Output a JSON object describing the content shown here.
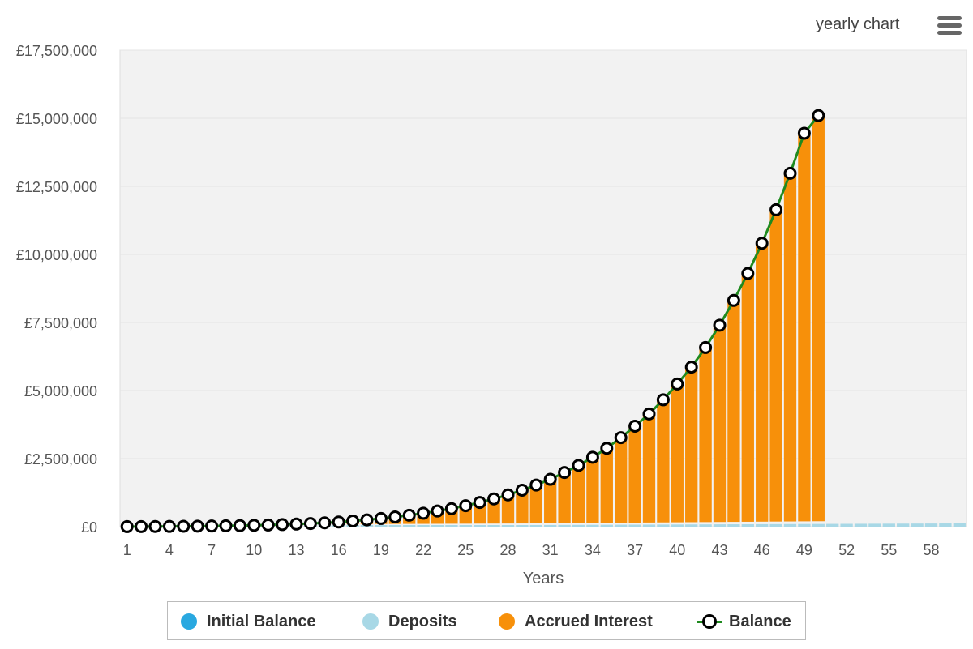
{
  "header": {
    "title": "yearly chart",
    "menu_icon": "hamburger-menu-icon"
  },
  "chart_data": {
    "type": "bar",
    "stacked": true,
    "xlabel": "Years",
    "ylabel": "",
    "ylim": [
      0,
      17500000
    ],
    "y_ticks": [
      0,
      2500000,
      5000000,
      7500000,
      10000000,
      12500000,
      15000000,
      17500000
    ],
    "y_tick_labels": [
      "£0",
      "£2,500,000",
      "£5,000,000",
      "£7,500,000",
      "£10,000,000",
      "£12,500,000",
      "£15,000,000",
      "£17,500,000"
    ],
    "x_tick_labels": [
      "1",
      "4",
      "7",
      "10",
      "13",
      "16",
      "19",
      "22",
      "25",
      "28",
      "31",
      "34",
      "37",
      "40",
      "43",
      "46",
      "49",
      "52",
      "55",
      "58"
    ],
    "categories": [
      1,
      2,
      3,
      4,
      5,
      6,
      7,
      8,
      9,
      10,
      11,
      12,
      13,
      14,
      15,
      16,
      17,
      18,
      19,
      20,
      21,
      22,
      23,
      24,
      25,
      26,
      27,
      28,
      29,
      30,
      31,
      32,
      33,
      34,
      35,
      36,
      37,
      38,
      39,
      40,
      41,
      42,
      43,
      44,
      45,
      46,
      47,
      48,
      49,
      50,
      51,
      52,
      53,
      54,
      55,
      56,
      57,
      58,
      59,
      60
    ],
    "grid": true,
    "legend_position": "bottom",
    "colors": {
      "initial_balance": "#29a8e0",
      "deposits": "#a8d8e6",
      "accrued_interest": "#f7900a",
      "balance_line": "#1f8a1f",
      "plot_background": "#f2f2f2"
    },
    "series": [
      {
        "name": "Initial Balance",
        "type": "bar",
        "values": [
          0,
          0,
          0,
          0,
          0,
          0,
          0,
          0,
          0,
          0,
          0,
          0,
          0,
          0,
          0,
          0,
          0,
          0,
          0,
          0,
          0,
          0,
          0,
          0,
          0,
          0,
          0,
          0,
          0,
          0,
          0,
          0,
          0,
          0,
          0,
          0,
          0,
          0,
          0,
          0,
          0,
          0,
          0,
          0,
          0,
          0,
          0,
          0,
          0,
          0,
          0,
          0,
          0,
          0,
          0,
          0,
          0,
          0,
          0,
          0
        ]
      },
      {
        "name": "Deposits",
        "type": "bar",
        "values": [
          2000,
          4000,
          6000,
          8000,
          10000,
          12000,
          14000,
          16000,
          18000,
          20000,
          22000,
          24000,
          26000,
          28000,
          30000,
          32000,
          34000,
          36000,
          38000,
          40000,
          42000,
          44000,
          46000,
          48000,
          50000,
          52000,
          54000,
          56000,
          58000,
          60000,
          62000,
          64000,
          66000,
          68000,
          70000,
          72000,
          74000,
          76000,
          78000,
          80000,
          82000,
          84000,
          86000,
          88000,
          90000,
          92000,
          94000,
          96000,
          98000,
          100000,
          102000,
          104000,
          106000,
          108000,
          110000,
          112000,
          114000,
          116000,
          118000,
          120000
        ]
      },
      {
        "name": "Accrued Interest",
        "type": "bar",
        "values": [
          0,
          300,
          1000,
          2000,
          4000,
          7000,
          11000,
          16000,
          22000,
          30000,
          40000,
          53000,
          69000,
          88000,
          112000,
          140000,
          176000,
          214000,
          262000,
          318000,
          378000,
          449000,
          529000,
          616000,
          720000,
          838000,
          966000,
          1114000,
          1282000,
          1470000,
          1678000,
          1926000,
          2184000,
          2482000,
          2810000,
          3198000,
          3616000,
          4064000,
          4582000,
          5160000,
          5778000,
          6496000,
          7314000,
          8222000,
          9210000,
          10318000,
          11546000,
          12884000,
          14352000,
          15000000,
          0,
          0,
          0,
          0,
          0,
          0,
          0,
          0,
          0,
          0
        ]
      },
      {
        "name": "Balance",
        "type": "line",
        "values": [
          2000,
          4300,
          7000,
          10000,
          14000,
          19000,
          25000,
          32000,
          40000,
          50000,
          62000,
          77000,
          95000,
          116000,
          142000,
          172000,
          210000,
          250000,
          300000,
          358000,
          420000,
          493000,
          575000,
          664000,
          770000,
          890000,
          1020000,
          1170000,
          1340000,
          1530000,
          1740000,
          1990000,
          2250000,
          2550000,
          2880000,
          3270000,
          3690000,
          4140000,
          4660000,
          5240000,
          5860000,
          6580000,
          7400000,
          8310000,
          9300000,
          10410000,
          11640000,
          12980000,
          14450000,
          15100000,
          0,
          0,
          0,
          0,
          0,
          0,
          0,
          0,
          0,
          0
        ]
      }
    ]
  },
  "legend": {
    "items": [
      {
        "label": "Initial Balance"
      },
      {
        "label": "Deposits"
      },
      {
        "label": "Accrued Interest"
      },
      {
        "label": "Balance"
      }
    ]
  }
}
